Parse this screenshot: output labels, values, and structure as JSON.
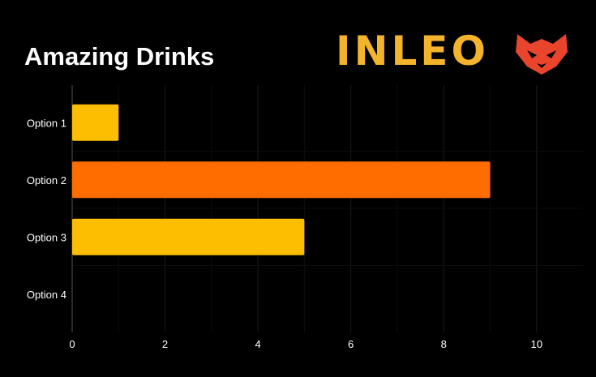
{
  "brand": {
    "name": "INLEO",
    "color": "#f3b32a",
    "mark_color": "#e8452c",
    "mark_icon": "lion-head-icon"
  },
  "chart_data": {
    "type": "bar",
    "orientation": "horizontal",
    "title": "Amazing Drinks",
    "xlabel": "",
    "ylabel": "",
    "categories": [
      "Option 1",
      "Option 2",
      "Option 3",
      "Option 4"
    ],
    "values": [
      1,
      9,
      5,
      0
    ],
    "bar_colors": [
      "#fdbe02",
      "#ff6d00",
      "#fdbe02",
      "#fdbe02"
    ],
    "xlim": [
      0,
      11
    ],
    "xticks": [
      0,
      2,
      4,
      6,
      8,
      10
    ],
    "grid": true,
    "legend": "none",
    "background": "#000000"
  }
}
